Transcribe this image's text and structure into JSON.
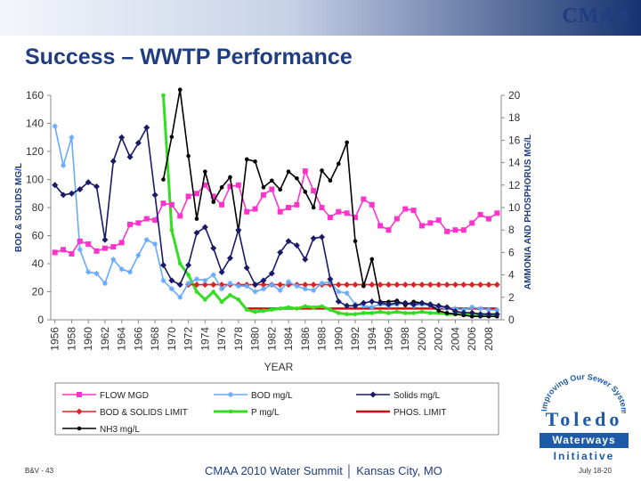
{
  "header": {
    "logo_text": "CMAA"
  },
  "slide": {
    "title": "Success – WWTP Performance"
  },
  "footer": {
    "left": "B&V - 43",
    "center": "CMAA 2010 Water Summit │ Kansas City, MO",
    "right": "July 18-20"
  },
  "logo": {
    "arc_text": "Improving Our Sewer System",
    "name": "Toledo",
    "line2": "Waterways",
    "line3": "Initiative"
  },
  "chart_data": {
    "type": "line",
    "xlabel": "YEAR",
    "ylabel_left": "BOD & SOLIDS MG/L",
    "ylabel_right": "AMMONIA AND PHOSPHORUS MG/L",
    "x_ticks": [
      1956,
      1958,
      1960,
      1962,
      1964,
      1966,
      1968,
      1970,
      1972,
      1974,
      1976,
      1978,
      1980,
      1982,
      1984,
      1986,
      1988,
      1990,
      1992,
      1994,
      1996,
      1998,
      2000,
      2002,
      2004,
      2006,
      2008
    ],
    "ylim_left": [
      0,
      160
    ],
    "ylim_right": [
      0,
      20
    ],
    "y_ticks_left": [
      0,
      20,
      40,
      60,
      80,
      100,
      120,
      140,
      160
    ],
    "y_ticks_right": [
      0,
      2,
      4,
      6,
      8,
      10,
      12,
      14,
      16,
      18,
      20
    ],
    "grid": false,
    "legend_placement": "bottom",
    "series": [
      {
        "name": "FLOW MGD",
        "axis": "left",
        "color": "#ff33cc",
        "marker": "square",
        "points": [
          [
            1956,
            48
          ],
          [
            1957,
            50
          ],
          [
            1958,
            47
          ],
          [
            1959,
            56
          ],
          [
            1960,
            54
          ],
          [
            1961,
            49
          ],
          [
            1962,
            51
          ],
          [
            1963,
            52
          ],
          [
            1964,
            55
          ],
          [
            1965,
            68
          ],
          [
            1966,
            69
          ],
          [
            1967,
            72
          ],
          [
            1968,
            71
          ],
          [
            1969,
            83
          ],
          [
            1970,
            82
          ],
          [
            1971,
            74
          ],
          [
            1972,
            88
          ],
          [
            1973,
            90
          ],
          [
            1974,
            96
          ],
          [
            1975,
            88
          ],
          [
            1976,
            82
          ],
          [
            1977,
            95
          ],
          [
            1978,
            96
          ],
          [
            1979,
            77
          ],
          [
            1980,
            79
          ],
          [
            1981,
            89
          ],
          [
            1982,
            93
          ],
          [
            1983,
            77
          ],
          [
            1984,
            80
          ],
          [
            1985,
            82
          ],
          [
            1986,
            106
          ],
          [
            1987,
            92
          ],
          [
            1988,
            80
          ],
          [
            1989,
            73
          ],
          [
            1990,
            77
          ],
          [
            1991,
            76
          ],
          [
            1992,
            73
          ],
          [
            1993,
            86
          ],
          [
            1994,
            82
          ],
          [
            1995,
            67
          ],
          [
            1996,
            64
          ],
          [
            1997,
            72
          ],
          [
            1998,
            79
          ],
          [
            1999,
            78
          ],
          [
            2000,
            67
          ],
          [
            2001,
            69
          ],
          [
            2002,
            71
          ],
          [
            2003,
            63
          ],
          [
            2004,
            64
          ],
          [
            2005,
            64
          ],
          [
            2006,
            69
          ],
          [
            2007,
            75
          ],
          [
            2008,
            72
          ],
          [
            2009,
            76
          ]
        ]
      },
      {
        "name": "BOD mg/L",
        "axis": "left",
        "color": "#66aaff",
        "marker": "star",
        "points": [
          [
            1956,
            138
          ],
          [
            1957,
            110
          ],
          [
            1958,
            130
          ],
          [
            1959,
            50
          ],
          [
            1960,
            34
          ],
          [
            1961,
            33
          ],
          [
            1962,
            26
          ],
          [
            1963,
            43
          ],
          [
            1964,
            36
          ],
          [
            1965,
            34
          ],
          [
            1966,
            46
          ],
          [
            1967,
            57
          ],
          [
            1968,
            54
          ],
          [
            1969,
            28
          ],
          [
            1970,
            22
          ],
          [
            1971,
            16
          ],
          [
            1972,
            26
          ],
          [
            1973,
            29
          ],
          [
            1974,
            28
          ],
          [
            1975,
            32
          ],
          [
            1976,
            22
          ],
          [
            1977,
            26
          ],
          [
            1978,
            24
          ],
          [
            1979,
            24
          ],
          [
            1980,
            20
          ],
          [
            1981,
            22
          ],
          [
            1982,
            25
          ],
          [
            1983,
            21
          ],
          [
            1984,
            27
          ],
          [
            1985,
            24
          ],
          [
            1986,
            22
          ],
          [
            1987,
            21
          ],
          [
            1988,
            26
          ],
          [
            1989,
            27
          ],
          [
            1990,
            20
          ],
          [
            1991,
            19
          ],
          [
            1992,
            11
          ],
          [
            1993,
            10
          ],
          [
            1994,
            9
          ],
          [
            1995,
            11
          ],
          [
            1996,
            10
          ],
          [
            1997,
            11
          ],
          [
            1998,
            12
          ],
          [
            1999,
            10
          ],
          [
            2000,
            11
          ],
          [
            2001,
            10
          ],
          [
            2002,
            9
          ],
          [
            2003,
            8
          ],
          [
            2004,
            8
          ],
          [
            2005,
            7
          ],
          [
            2006,
            9
          ],
          [
            2007,
            8
          ],
          [
            2008,
            7
          ],
          [
            2009,
            7
          ]
        ]
      },
      {
        "name": "Solids mg/L",
        "axis": "left",
        "color": "#1a1a66",
        "marker": "diamond",
        "points": [
          [
            1956,
            96
          ],
          [
            1957,
            89
          ],
          [
            1958,
            90
          ],
          [
            1959,
            93
          ],
          [
            1960,
            98
          ],
          [
            1961,
            95
          ],
          [
            1962,
            57
          ],
          [
            1963,
            113
          ],
          [
            1964,
            130
          ],
          [
            1965,
            116
          ],
          [
            1966,
            126
          ],
          [
            1967,
            137
          ],
          [
            1968,
            89
          ],
          [
            1969,
            39
          ],
          [
            1970,
            28
          ],
          [
            1971,
            25
          ],
          [
            1972,
            39
          ],
          [
            1973,
            62
          ],
          [
            1974,
            66
          ],
          [
            1975,
            51
          ],
          [
            1976,
            34
          ],
          [
            1977,
            44
          ],
          [
            1978,
            64
          ],
          [
            1979,
            37
          ],
          [
            1980,
            25
          ],
          [
            1981,
            28
          ],
          [
            1982,
            33
          ],
          [
            1983,
            48
          ],
          [
            1984,
            56
          ],
          [
            1985,
            53
          ],
          [
            1986,
            43
          ],
          [
            1987,
            58
          ],
          [
            1988,
            59
          ],
          [
            1989,
            29
          ],
          [
            1990,
            13
          ],
          [
            1991,
            10
          ],
          [
            1992,
            10
          ],
          [
            1993,
            12
          ],
          [
            1994,
            13
          ],
          [
            1995,
            12
          ],
          [
            1996,
            11
          ],
          [
            1997,
            12
          ],
          [
            1998,
            12
          ],
          [
            1999,
            11
          ],
          [
            2000,
            12
          ],
          [
            2001,
            11
          ],
          [
            2002,
            10
          ],
          [
            2003,
            9
          ],
          [
            2004,
            6
          ],
          [
            2005,
            5
          ],
          [
            2006,
            5
          ],
          [
            2007,
            4
          ],
          [
            2008,
            4
          ],
          [
            2009,
            4
          ]
        ]
      },
      {
        "name": "BOD & SOLIDS LIMIT",
        "axis": "left",
        "color": "#dd2222",
        "marker": "diamond",
        "points": [
          [
            1972,
            25
          ],
          [
            1973,
            25
          ],
          [
            1974,
            25
          ],
          [
            1975,
            25
          ],
          [
            1976,
            25
          ],
          [
            1977,
            25
          ],
          [
            1978,
            25
          ],
          [
            1979,
            25
          ],
          [
            1980,
            25
          ],
          [
            1981,
            25
          ],
          [
            1982,
            25
          ],
          [
            1983,
            25
          ],
          [
            1984,
            25
          ],
          [
            1985,
            25
          ],
          [
            1986,
            25
          ],
          [
            1987,
            25
          ],
          [
            1988,
            25
          ],
          [
            1989,
            25
          ],
          [
            1990,
            25
          ],
          [
            1991,
            25
          ],
          [
            1992,
            25
          ],
          [
            1993,
            25
          ],
          [
            1994,
            25
          ],
          [
            1995,
            25
          ],
          [
            1996,
            25
          ],
          [
            1997,
            25
          ],
          [
            1998,
            25
          ],
          [
            1999,
            25
          ],
          [
            2000,
            25
          ],
          [
            2001,
            25
          ],
          [
            2002,
            25
          ],
          [
            2003,
            25
          ],
          [
            2004,
            25
          ],
          [
            2005,
            25
          ],
          [
            2006,
            25
          ],
          [
            2007,
            25
          ],
          [
            2008,
            25
          ],
          [
            2009,
            25
          ]
        ]
      },
      {
        "name": "P mg/L",
        "axis": "right",
        "color": "#33dd22",
        "marker": "dot",
        "points": [
          [
            1969,
            20
          ],
          [
            1970,
            8
          ],
          [
            1971,
            5
          ],
          [
            1972,
            4
          ],
          [
            1973,
            2.5
          ],
          [
            1974,
            1.8
          ],
          [
            1975,
            2.5
          ],
          [
            1976,
            1.6
          ],
          [
            1977,
            2.2
          ],
          [
            1978,
            1.8
          ],
          [
            1979,
            0.9
          ],
          [
            1980,
            0.7
          ],
          [
            1981,
            0.8
          ],
          [
            1982,
            0.9
          ],
          [
            1983,
            1
          ],
          [
            1984,
            1.1
          ],
          [
            1985,
            1
          ],
          [
            1986,
            1.2
          ],
          [
            1987,
            1.1
          ],
          [
            1988,
            1.2
          ],
          [
            1989,
            0.9
          ],
          [
            1990,
            0.6
          ],
          [
            1991,
            0.5
          ],
          [
            1992,
            0.5
          ],
          [
            1993,
            0.6
          ],
          [
            1994,
            0.6
          ],
          [
            1995,
            0.7
          ],
          [
            1996,
            0.6
          ],
          [
            1997,
            0.7
          ],
          [
            1998,
            0.6
          ],
          [
            1999,
            0.6
          ],
          [
            2000,
            0.7
          ],
          [
            2001,
            0.6
          ],
          [
            2002,
            0.6
          ],
          [
            2003,
            0.5
          ],
          [
            2004,
            0.5
          ],
          [
            2005,
            0.5
          ],
          [
            2006,
            0.5
          ],
          [
            2007,
            0.5
          ],
          [
            2008,
            0.5
          ],
          [
            2009,
            0.5
          ]
        ]
      },
      {
        "name": "PHOS. LIMIT",
        "axis": "right",
        "color": "#cc1111",
        "marker": "none",
        "points": [
          [
            1979,
            1
          ],
          [
            2009,
            1
          ]
        ]
      },
      {
        "name": "NH3 mg/L",
        "axis": "right",
        "color": "#000000",
        "marker": "dot",
        "points": [
          [
            1969,
            12.5
          ],
          [
            1970,
            16.3
          ],
          [
            1971,
            20.5
          ],
          [
            1972,
            14.6
          ],
          [
            1973,
            9
          ],
          [
            1974,
            13.2
          ],
          [
            1975,
            10.5
          ],
          [
            1976,
            11.8
          ],
          [
            1977,
            12.7
          ],
          [
            1978,
            7.9
          ],
          [
            1979,
            14.3
          ],
          [
            1980,
            14.1
          ],
          [
            1981,
            11.8
          ],
          [
            1982,
            12.4
          ],
          [
            1983,
            11.6
          ],
          [
            1984,
            13.2
          ],
          [
            1985,
            12.6
          ],
          [
            1986,
            11.4
          ],
          [
            1987,
            10
          ],
          [
            1988,
            13.3
          ],
          [
            1989,
            12.4
          ],
          [
            1990,
            13.9
          ],
          [
            1991,
            15.8
          ],
          [
            1992,
            7
          ],
          [
            1993,
            3
          ],
          [
            1994,
            5.4
          ],
          [
            1995,
            1.6
          ],
          [
            1996,
            1.6
          ],
          [
            1997,
            1.7
          ],
          [
            1998,
            1.3
          ],
          [
            1999,
            1.6
          ],
          [
            2000,
            1.5
          ],
          [
            2001,
            1.3
          ],
          [
            2002,
            0.8
          ],
          [
            2003,
            0.6
          ],
          [
            2004,
            0.5
          ],
          [
            2005,
            0.4
          ],
          [
            2006,
            0.3
          ],
          [
            2007,
            0.3
          ],
          [
            2008,
            0.3
          ],
          [
            2009,
            0.3
          ]
        ]
      }
    ]
  }
}
